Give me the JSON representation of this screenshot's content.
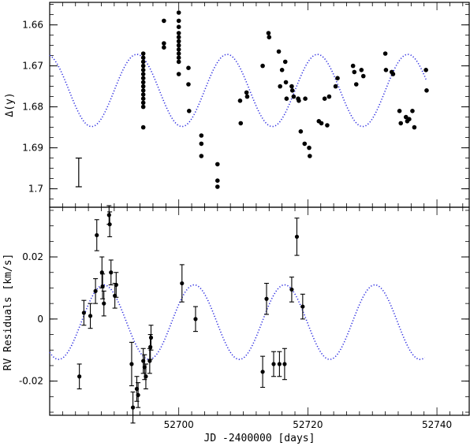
{
  "chart_data": [
    {
      "type": "scatter",
      "panel": "top",
      "ylabel": "Δ(y)",
      "xlim": [
        52680,
        52745
      ],
      "ylim": [
        1.7045,
        1.6545
      ],
      "y_inverted": true,
      "yticks": [
        1.66,
        1.67,
        1.68,
        1.69,
        1.7
      ],
      "ytick_labels": [
        "1.66",
        "1.67",
        "1.68",
        "1.69",
        "1.7"
      ],
      "model_curve": {
        "style": "dotted",
        "color": "#2020dd",
        "mean": 1.676,
        "amplitude": 0.0088,
        "period": 14.0,
        "phase_x": 52686.5,
        "x_start": 52680,
        "x_end": 52738.3
      },
      "error_bar": {
        "x": 52684.5,
        "y_low": 1.6925,
        "y_high": 1.6995
      },
      "points": [
        [
          52694.5,
          1.667
        ],
        [
          52694.5,
          1.668
        ],
        [
          52694.5,
          1.669
        ],
        [
          52694.5,
          1.67
        ],
        [
          52694.5,
          1.671
        ],
        [
          52694.5,
          1.672
        ],
        [
          52694.5,
          1.673
        ],
        [
          52694.5,
          1.674
        ],
        [
          52694.5,
          1.675
        ],
        [
          52694.5,
          1.676
        ],
        [
          52694.5,
          1.677
        ],
        [
          52694.5,
          1.678
        ],
        [
          52694.5,
          1.679
        ],
        [
          52694.5,
          1.68
        ],
        [
          52694.5,
          1.685
        ],
        [
          52697.7,
          1.659
        ],
        [
          52697.7,
          1.6645
        ],
        [
          52697.7,
          1.6655
        ],
        [
          52700,
          1.657
        ],
        [
          52700,
          1.659
        ],
        [
          52700,
          1.6605
        ],
        [
          52700,
          1.662
        ],
        [
          52700,
          1.663
        ],
        [
          52700,
          1.664
        ],
        [
          52700,
          1.665
        ],
        [
          52700,
          1.666
        ],
        [
          52700,
          1.667
        ],
        [
          52700,
          1.668
        ],
        [
          52700,
          1.669
        ],
        [
          52700,
          1.672
        ],
        [
          52701.5,
          1.6705
        ],
        [
          52701.5,
          1.6745
        ],
        [
          52701.6,
          1.681
        ],
        [
          52703.5,
          1.687
        ],
        [
          52703.5,
          1.689
        ],
        [
          52703.5,
          1.692
        ],
        [
          52706,
          1.694
        ],
        [
          52706,
          1.698
        ],
        [
          52706,
          1.6995
        ],
        [
          52709.5,
          1.6785
        ],
        [
          52709.6,
          1.684
        ],
        [
          52710.5,
          1.6765
        ],
        [
          52710.6,
          1.6775
        ],
        [
          52713,
          1.67
        ],
        [
          52713.9,
          1.662
        ],
        [
          52714,
          1.663
        ],
        [
          52715.5,
          1.6665
        ],
        [
          52715.7,
          1.675
        ],
        [
          52716,
          1.671
        ],
        [
          52716.5,
          1.669
        ],
        [
          52716.6,
          1.674
        ],
        [
          52716.7,
          1.678
        ],
        [
          52717.5,
          1.675
        ],
        [
          52717.6,
          1.676
        ],
        [
          52717.8,
          1.6775
        ],
        [
          52718.5,
          1.678
        ],
        [
          52718.6,
          1.6785
        ],
        [
          52718.9,
          1.686
        ],
        [
          52719.5,
          1.689
        ],
        [
          52719.6,
          1.678
        ],
        [
          52720.2,
          1.69
        ],
        [
          52720.3,
          1.692
        ],
        [
          52721.7,
          1.6835
        ],
        [
          52722.1,
          1.684
        ],
        [
          52722.6,
          1.678
        ],
        [
          52723,
          1.6845
        ],
        [
          52723.3,
          1.6775
        ],
        [
          52724.3,
          1.675
        ],
        [
          52724.6,
          1.673
        ],
        [
          52727,
          1.67
        ],
        [
          52727.2,
          1.6715
        ],
        [
          52727.5,
          1.6745
        ],
        [
          52728.3,
          1.671
        ],
        [
          52728.6,
          1.6725
        ],
        [
          52732,
          1.667
        ],
        [
          52732.1,
          1.671
        ],
        [
          52733,
          1.6715
        ],
        [
          52733.2,
          1.672
        ],
        [
          52734.2,
          1.681
        ],
        [
          52734.4,
          1.684
        ],
        [
          52735.2,
          1.6825
        ],
        [
          52735.4,
          1.6835
        ],
        [
          52735.7,
          1.683
        ],
        [
          52736.2,
          1.681
        ],
        [
          52736.5,
          1.685
        ],
        [
          52738.3,
          1.671
        ],
        [
          52738.4,
          1.676
        ]
      ]
    },
    {
      "type": "scatter",
      "panel": "bottom",
      "xlabel": "JD -2400000 [days]",
      "ylabel": "RV Residuals [km/s]",
      "xlim": [
        52680,
        52745
      ],
      "ylim": [
        -0.031,
        0.036
      ],
      "xticks": [
        52700,
        52720,
        52740
      ],
      "xtick_labels": [
        "52700",
        "52720",
        "52740"
      ],
      "yticks": [
        -0.02,
        0,
        0.02
      ],
      "ytick_labels": [
        "-0.02",
        "0",
        "0.02"
      ],
      "model_curve": {
        "style": "dotted",
        "color": "#2020dd",
        "mean": -0.001,
        "amplitude": 0.012,
        "period": 14.0,
        "phase_x": 52702.4,
        "x_start": 52680,
        "x_end": 52738.1
      },
      "points": [
        {
          "x": 52684.6,
          "y": -0.0185,
          "e": 0.004
        },
        {
          "x": 52685.3,
          "y": 0.002,
          "e": 0.004
        },
        {
          "x": 52686.3,
          "y": 0.001,
          "e": 0.004
        },
        {
          "x": 52687.1,
          "y": 0.009,
          "e": 0.004
        },
        {
          "x": 52687.3,
          "y": 0.027,
          "e": 0.005
        },
        {
          "x": 52688.1,
          "y": 0.015,
          "e": 0.005
        },
        {
          "x": 52688.2,
          "y": 0.0105,
          "e": 0.004
        },
        {
          "x": 52688.4,
          "y": 0.005,
          "e": 0.004
        },
        {
          "x": 52689.2,
          "y": 0.0335,
          "e": 0.003
        },
        {
          "x": 52689.3,
          "y": 0.0305,
          "e": 0.004
        },
        {
          "x": 52689.5,
          "y": 0.015,
          "e": 0.004
        },
        {
          "x": 52690.1,
          "y": 0.0075,
          "e": 0.004
        },
        {
          "x": 52690.3,
          "y": 0.011,
          "e": 0.004
        },
        {
          "x": 52692.7,
          "y": -0.0145,
          "e": 0.007
        },
        {
          "x": 52692.9,
          "y": -0.0285,
          "e": 0.005
        },
        {
          "x": 52693.5,
          "y": -0.0225,
          "e": 0.004
        },
        {
          "x": 52693.7,
          "y": -0.0245,
          "e": 0.004
        },
        {
          "x": 52694.5,
          "y": -0.0135,
          "e": 0.004
        },
        {
          "x": 52694.7,
          "y": -0.0155,
          "e": 0.004
        },
        {
          "x": 52694.9,
          "y": -0.0185,
          "e": 0.004
        },
        {
          "x": 52695.5,
          "y": -0.0135,
          "e": 0.004
        },
        {
          "x": 52695.6,
          "y": -0.009,
          "e": 0.004
        },
        {
          "x": 52695.7,
          "y": -0.006,
          "e": 0.004
        },
        {
          "x": 52700.5,
          "y": 0.0115,
          "e": 0.006
        },
        {
          "x": 52702.6,
          "y": 0,
          "e": 0.004
        },
        {
          "x": 52713,
          "y": -0.017,
          "e": 0.005
        },
        {
          "x": 52713.6,
          "y": 0.0065,
          "e": 0.005
        },
        {
          "x": 52714.7,
          "y": -0.0145,
          "e": 0.004
        },
        {
          "x": 52715.6,
          "y": -0.0145,
          "e": 0.004
        },
        {
          "x": 52716.4,
          "y": -0.0145,
          "e": 0.005
        },
        {
          "x": 52717.5,
          "y": 0.0095,
          "e": 0.004
        },
        {
          "x": 52718.3,
          "y": 0.0265,
          "e": 0.006
        },
        {
          "x": 52719.2,
          "y": 0.004,
          "e": 0.004
        }
      ]
    }
  ]
}
